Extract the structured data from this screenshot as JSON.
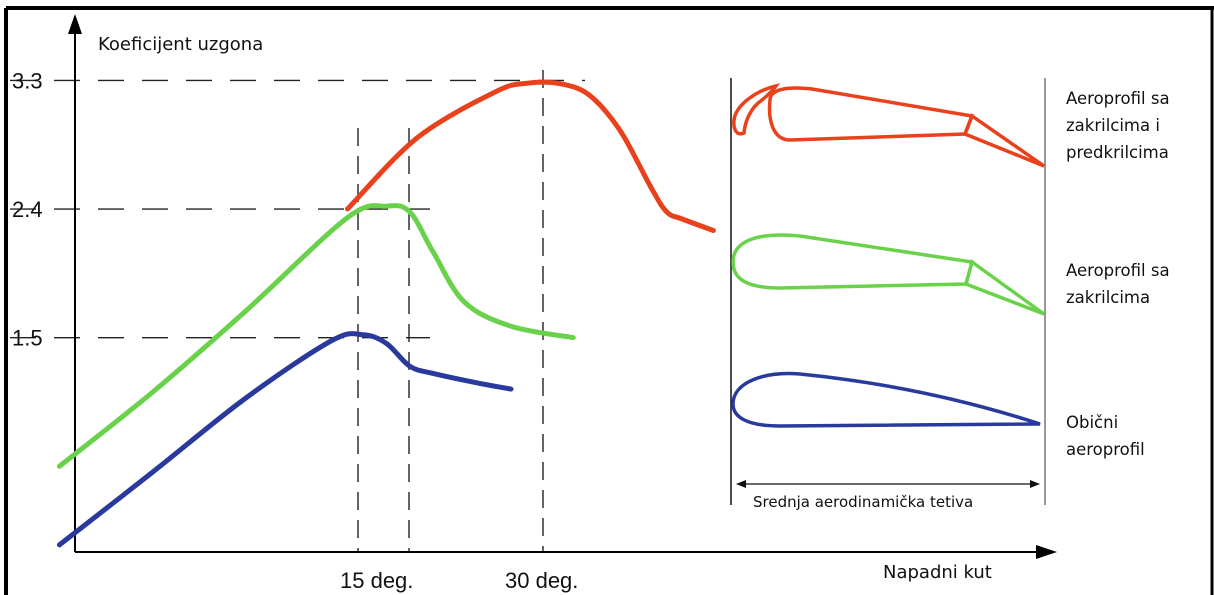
{
  "chart_data": {
    "type": "line",
    "ylabel": "Koeficijent uzgona",
    "xlabel": "Napadni kut",
    "y_ticks": [
      "3.3",
      "2.4",
      "1.5"
    ],
    "x_ticks": [
      "15 deg.",
      "30 deg."
    ],
    "ylim": [
      0,
      4
    ],
    "xlim": [
      -1,
      52
    ],
    "series": [
      {
        "name": "Aeroprofil sa zakrilcima i predkrilcima",
        "color": "#e8411c",
        "points": [
          [
            17.5,
            2.4
          ],
          [
            22,
            2.9
          ],
          [
            27,
            3.22
          ],
          [
            29,
            3.28
          ],
          [
            31,
            3.28
          ],
          [
            33,
            3.2
          ],
          [
            35,
            2.95
          ],
          [
            37,
            2.55
          ],
          [
            38,
            2.38
          ],
          [
            39,
            2.33
          ],
          [
            41,
            2.25
          ]
        ]
      },
      {
        "name": "Aeroprofil sa zakrilcima",
        "color": "#6ad24a",
        "points": [
          [
            -1,
            0.6
          ],
          [
            5,
            1.12
          ],
          [
            11,
            1.69
          ],
          [
            17.5,
            2.34
          ],
          [
            20,
            2.42
          ],
          [
            21.5,
            2.38
          ],
          [
            23,
            2.1
          ],
          [
            25,
            1.75
          ],
          [
            28,
            1.58
          ],
          [
            32,
            1.5
          ]
        ]
      },
      {
        "name": "Obični aeroprofil",
        "color": "#2a3a9c",
        "points": [
          [
            -1,
            0.05
          ],
          [
            5,
            0.56
          ],
          [
            11,
            1.08
          ],
          [
            16.5,
            1.48
          ],
          [
            18.5,
            1.52
          ],
          [
            20,
            1.46
          ],
          [
            21.5,
            1.3
          ],
          [
            23,
            1.25
          ],
          [
            26,
            1.18
          ],
          [
            28,
            1.14
          ]
        ]
      }
    ],
    "reference_lines": {
      "y": [
        3.3,
        2.4,
        1.5
      ],
      "x": [
        15,
        17.5,
        30
      ]
    },
    "chord_label": "Srednja aerodinamička tetiva",
    "legend_position": "right",
    "legend": [
      {
        "lines": [
          "Aeroprofil sa",
          "zakrilcima i",
          "predkrilcima"
        ]
      },
      {
        "lines": [
          "Aeroprofil sa",
          "zakrilcima"
        ]
      },
      {
        "lines": [
          "Obični",
          "aeroprofil"
        ]
      }
    ]
  }
}
